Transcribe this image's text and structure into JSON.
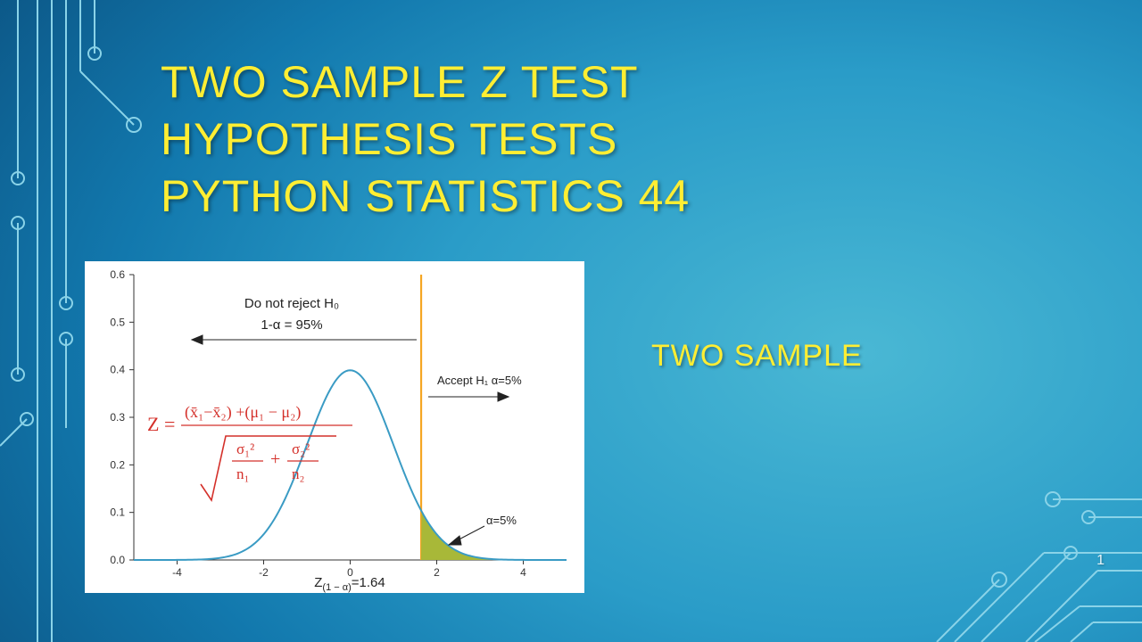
{
  "title": {
    "line1": "TWO SAMPLE Z TEST",
    "line2": "HYPOTHESIS TESTS",
    "line3": "PYTHON    STATISTICS       44",
    "color": "#ffee33",
    "fontsize": 50
  },
  "subtitle": {
    "text": "TWO SAMPLE",
    "color": "#ffee33",
    "fontsize": 34
  },
  "page_number": "1",
  "chart": {
    "type": "area",
    "background_color": "#ffffff",
    "curve_color": "#3a9bc4",
    "critical_line_color": "#f5a623",
    "region_fill_color": "#a8b838",
    "axis_color": "#333333",
    "xlim": [
      -5,
      5
    ],
    "ylim": [
      0,
      0.6
    ],
    "xticks": [
      -4,
      -2,
      0,
      2,
      4
    ],
    "yticks": [
      0.0,
      0.1,
      0.2,
      0.3,
      0.4,
      0.5,
      0.6
    ],
    "critical_value": 1.64,
    "xlabel_formula": "Z_(1-α)=1.64",
    "anno_left_top": "Do not reject H₀",
    "anno_left_bot": "1-α = 95%",
    "anno_right": "Accept H₁  α=5%",
    "anno_region": "α=5%",
    "formula": {
      "color": "#d4302a",
      "lhs": "Z =",
      "num": "(x̄₁−x̄₂) +(μ₁ − μ₂)",
      "den_sigma1": "σ₁²",
      "den_n1": "n₁",
      "den_sigma2": "σ₂²",
      "den_n2": "n₂"
    }
  },
  "circuit_color": "#8ad3e8"
}
